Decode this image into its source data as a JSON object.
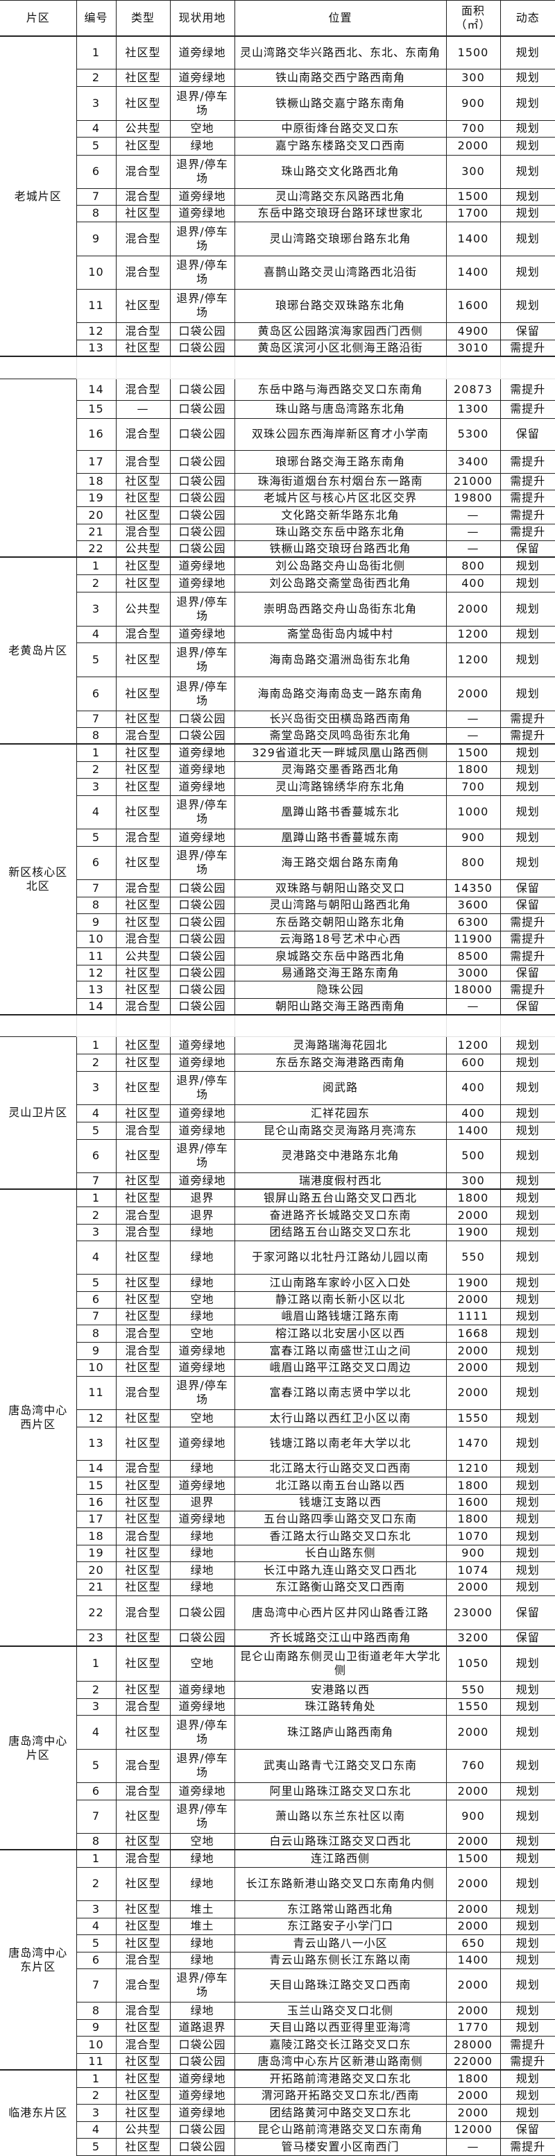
{
  "header": {
    "district": "片区",
    "no": "编号",
    "type": "类型",
    "land": "现状用地",
    "location": "位置",
    "area": "面积\n（㎡）",
    "status": "动态"
  },
  "groups": [
    {
      "district": "老城片区",
      "rows": [
        [
          "1",
          "社区型",
          "道旁绿地",
          "灵山湾路交华兴路西北、东北、东南角",
          "1500",
          "规划"
        ],
        [
          "2",
          "社区型",
          "道旁绿地",
          "铁山南路交西宁路西南角",
          "300",
          "规划"
        ],
        [
          "3",
          "社区型",
          "退界/停车场",
          "铁橛山路交嘉宁路东南角",
          "900",
          "规划"
        ],
        [
          "4",
          "公共型",
          "空地",
          "中原街烽台路交叉口东",
          "700",
          "规划"
        ],
        [
          "5",
          "社区型",
          "绿地",
          "嘉宁路东楼路交叉口西南",
          "2000",
          "规划"
        ],
        [
          "6",
          "混合型",
          "退界/停车场",
          "珠山路交文化路西北角",
          "300",
          "规划"
        ],
        [
          "7",
          "混合型",
          "道旁绿地",
          "灵山湾路交东风路西北角",
          "1500",
          "规划"
        ],
        [
          "8",
          "社区型",
          "道旁绿地",
          "东岳中路交琅玡台路环球世家北",
          "1700",
          "规划"
        ],
        [
          "9",
          "混合型",
          "退界/停车场",
          "灵山湾路交琅琊台路东北角",
          "1400",
          "规划"
        ],
        [
          "10",
          "混合型",
          "退界/停车场",
          "喜鹊山路交灵山湾路西北沿街",
          "1400",
          "规划"
        ],
        [
          "11",
          "社区型",
          "退界/停车场",
          "琅琊台路交双珠路东北角",
          "1600",
          "规划"
        ],
        [
          "12",
          "混合型",
          "口袋公园",
          "黄岛区公园路滨海家园西门西侧",
          "4900",
          "保留"
        ],
        [
          "13",
          "社区型",
          "口袋公园",
          "黄岛区滨河小区北侧海王路沿街",
          "3010",
          "需提升"
        ]
      ]
    },
    {
      "district": "",
      "rows": [
        [
          "14",
          "混合型",
          "口袋公园",
          "东岳中路与海西路交叉口东南角",
          "20873",
          "需提升"
        ],
        [
          "15",
          "—",
          "口袋公园",
          "珠山路与唐岛湾路东北角",
          "1300",
          "需提升"
        ],
        [
          "16",
          "混合型",
          "口袋公园",
          "双珠公园东西海岸新区育才小学南",
          "5300",
          "保留"
        ],
        [
          "17",
          "混合型",
          "口袋公园",
          "琅琊台路交海王路东南角",
          "3400",
          "需提升"
        ],
        [
          "18",
          "社区型",
          "口袋公园",
          "珠海街道烟台东村烟台东一路南",
          "21000",
          "需提升"
        ],
        [
          "19",
          "社区型",
          "口袋公园",
          "老城片区与核心片区北区交界",
          "19800",
          "需提升"
        ],
        [
          "20",
          "社区型",
          "口袋公园",
          "文化路交新华路东北角",
          "—",
          "需提升"
        ],
        [
          "21",
          "混合型",
          "口袋公园",
          "珠山路交东岳中路东北角",
          "—",
          "需提升"
        ],
        [
          "22",
          "公共型",
          "口袋公园",
          "铁橛山路交琅玡台路西北角",
          "—",
          "保留"
        ]
      ]
    },
    {
      "district": "老黄岛片区",
      "rows": [
        [
          "1",
          "社区型",
          "道旁绿地",
          "刘公岛路交舟山岛街北侧",
          "800",
          "规划"
        ],
        [
          "2",
          "社区型",
          "道旁绿地",
          "刘公岛路交斋堂岛街西北角",
          "400",
          "规划"
        ],
        [
          "3",
          "公共型",
          "退界/停车场",
          "崇明岛西路交舟山岛街东北角",
          "2000",
          "规划"
        ],
        [
          "4",
          "混合型",
          "道旁绿地",
          "斋堂岛街岛内城中村",
          "1200",
          "规划"
        ],
        [
          "5",
          "社区型",
          "退界/停车场",
          "海南岛路交湄洲岛街东北角",
          "1200",
          "规划"
        ],
        [
          "6",
          "社区型",
          "退界/停车场",
          "海南岛路交海南岛支一路东南角",
          "2000",
          "规划"
        ],
        [
          "7",
          "社区型",
          "口袋公园",
          "长兴岛街交田横岛路西南角",
          "—",
          "需提升"
        ],
        [
          "8",
          "混合型",
          "口袋公园",
          "斋堂岛路交凤鸣岛街东北角",
          "—",
          "需提升"
        ]
      ]
    },
    {
      "district": "新区核心区\n北区",
      "rows": [
        [
          "1",
          "社区型",
          "道旁绿地",
          "329省道北天一畔城凤凰山路西侧",
          "1500",
          "规划"
        ],
        [
          "2",
          "社区型",
          "道旁绿地",
          "灵海路交墨香路西北角",
          "1800",
          "规划"
        ],
        [
          "3",
          "社区型",
          "道旁绿地",
          "灵山湾路锦绣华府东北角",
          "700",
          "规划"
        ],
        [
          "4",
          "社区型",
          "退界/停车场",
          "凰蹲山路书香蔓城东北",
          "1000",
          "规划"
        ],
        [
          "5",
          "混合型",
          "道旁绿地",
          "凰蹲山路书香蔓城东南",
          "900",
          "规划"
        ],
        [
          "6",
          "社区型",
          "退界/停车场",
          "海王路交烟台路东南角",
          "800",
          "规划"
        ],
        [
          "7",
          "混合型",
          "口袋公园",
          "双珠路与朝阳山路交叉口",
          "14350",
          "保留"
        ],
        [
          "8",
          "社区型",
          "口袋公园",
          "灵山湾路与朝阳山路西北角",
          "3600",
          "保留"
        ],
        [
          "9",
          "社区型",
          "口袋公园",
          "东岳路交朝阳山路东北角",
          "6300",
          "需提升"
        ],
        [
          "10",
          "混合型",
          "口袋公园",
          "云海路18号艺术中心西",
          "11900",
          "需提升"
        ],
        [
          "11",
          "公共型",
          "口袋公园",
          "泉城路交东岳中路西北角",
          "8500",
          "需提升"
        ],
        [
          "12",
          "社区型",
          "口袋公园",
          "易通路交海王路东南角",
          "3000",
          "保留"
        ],
        [
          "13",
          "社区型",
          "口袋公园",
          "隐珠公园",
          "18000",
          "需提升"
        ],
        [
          "14",
          "混合型",
          "口袋公园",
          "朝阳山路交海王路西南角",
          "—",
          "保留"
        ]
      ]
    },
    {
      "district": "灵山卫片区",
      "rows": [
        [
          "1",
          "社区型",
          "道旁绿地",
          "灵海路瑞海花园北",
          "1200",
          "规划"
        ],
        [
          "2",
          "社区型",
          "道旁绿地",
          "东岳东路交海港路西南角",
          "600",
          "规划"
        ],
        [
          "3",
          "社区型",
          "退界/停车场",
          "阅武路",
          "400",
          "规划"
        ],
        [
          "4",
          "社区型",
          "道旁绿地",
          "汇祥花园东",
          "400",
          "规划"
        ],
        [
          "5",
          "混合型",
          "道旁绿地",
          "昆仑山南路交灵海路月亮湾东",
          "1400",
          "规划"
        ],
        [
          "6",
          "社区型",
          "退界/停车场",
          "灵港路交中港路东北角",
          "500",
          "规划"
        ],
        [
          "7",
          "社区型",
          "道旁绿地",
          "瑞港度假村西北",
          "300",
          "规划"
        ]
      ]
    },
    {
      "district": "唐岛湾中心\n西片区",
      "rows": [
        [
          "1",
          "社区型",
          "退界",
          "银屏山路五台山路交叉口西北",
          "1800",
          "规划"
        ],
        [
          "2",
          "混合型",
          "退界",
          "奋进路齐长城路交叉口东南",
          "2000",
          "规划"
        ],
        [
          "3",
          "混合型",
          "绿地",
          "团结路五台山路交叉口东北",
          "1900",
          "规划"
        ],
        [
          "4",
          "社区型",
          "绿地",
          "于家河路以北牡丹江路幼儿园以南",
          "550",
          "规划"
        ],
        [
          "5",
          "社区型",
          "绿地",
          "江山南路车家岭小区入口处",
          "1900",
          "规划"
        ],
        [
          "6",
          "社区型",
          "空地",
          "静江路以南长新小区以北",
          "2000",
          "规划"
        ],
        [
          "7",
          "社区型",
          "绿地",
          "峨眉山路钱塘江路东南",
          "1111",
          "规划"
        ],
        [
          "8",
          "混合型",
          "空地",
          "榕江路以北安居小区以西",
          "1668",
          "规划"
        ],
        [
          "9",
          "混合型",
          "道旁绿地",
          "富春江路以南盛世江山之间",
          "2000",
          "规划"
        ],
        [
          "10",
          "社区型",
          "道旁绿地",
          "峨眉山路平江路交叉口周边",
          "2000",
          "规划"
        ],
        [
          "11",
          "混合型",
          "退界/停车场",
          "富春江路以南志贤中学以北",
          "2000",
          "规划"
        ],
        [
          "12",
          "社区型",
          "空地",
          "太行山路以西红卫小区以南",
          "1550",
          "规划"
        ],
        [
          "13",
          "社区型",
          "道旁绿地",
          "钱塘江路以南老年大学以北",
          "1470",
          "规划"
        ],
        [
          "14",
          "混合型",
          "绿地",
          "北江路太行山路交叉口西南",
          "1210",
          "规划"
        ],
        [
          "15",
          "社区型",
          "道旁绿地",
          "北江路以南五台山路以西",
          "1800",
          "规划"
        ],
        [
          "16",
          "社区型",
          "退界",
          "钱塘江支路以西",
          "1600",
          "规划"
        ],
        [
          "17",
          "社区型",
          "道旁绿地",
          "五台山路四季山路交叉口东南",
          "1800",
          "规划"
        ],
        [
          "18",
          "混合型",
          "绿地",
          "香江路太行山路交叉口东北",
          "1070",
          "规划"
        ],
        [
          "19",
          "社区型",
          "绿地",
          "长白山路东侧",
          "900",
          "规划"
        ],
        [
          "20",
          "社区型",
          "绿地",
          "长江中路九连山路交叉口西北",
          "1074",
          "规划"
        ],
        [
          "21",
          "社区型",
          "绿地",
          "东江路衡山路交叉口西南",
          "2000",
          "规划"
        ],
        [
          "22",
          "混合型",
          "口袋公园",
          "唐岛湾中心西片区井冈山路香江路",
          "23000",
          "保留"
        ],
        [
          "23",
          "社区型",
          "口袋公园",
          "齐长城路交江山中路西南角",
          "3200",
          "保留"
        ]
      ]
    },
    {
      "district": "唐岛湾中心\n片区",
      "rows": [
        [
          "1",
          "社区型",
          "空地",
          "昆仑山南路东侧灵山卫街道老年大学北侧",
          "1050",
          "规划"
        ],
        [
          "2",
          "社区型",
          "道旁绿地",
          "安港路以西",
          "550",
          "规划"
        ],
        [
          "3",
          "混合型",
          "道旁绿地",
          "珠江路转角处",
          "1550",
          "规划"
        ],
        [
          "4",
          "社区型",
          "退界/停车场",
          "珠江路庐山路西南角",
          "2000",
          "规划"
        ],
        [
          "5",
          "混合型",
          "退界/停车场",
          "武夷山路青弋江路交叉口东南",
          "760",
          "规划"
        ],
        [
          "6",
          "混合型",
          "道旁绿地",
          "阿里山路珠江路交叉口东北",
          "2000",
          "规划"
        ],
        [
          "7",
          "社区型",
          "退界/停车场",
          "萧山路以东兰东社区以南",
          "900",
          "规划"
        ],
        [
          "8",
          "社区型",
          "空地",
          "白云山路珠江路交叉口西北",
          "2000",
          "规划"
        ]
      ]
    },
    {
      "district": "唐岛湾中心\n东片区",
      "rows": [
        [
          "1",
          "混合型",
          "绿地",
          "连江路西侧",
          "1500",
          "规划"
        ],
        [
          "2",
          "社区型",
          "绿地",
          "长江东路新港山路交叉口东南角内侧",
          "2000",
          "规划"
        ],
        [
          "3",
          "社区型",
          "堆土",
          "东江路常山路西北角",
          "2000",
          "规划"
        ],
        [
          "4",
          "社区型",
          "堆土",
          "东江路安子小学门口",
          "2000",
          "规划"
        ],
        [
          "5",
          "社区型",
          "绿地",
          "青云山路八一小区",
          "650",
          "规划"
        ],
        [
          "6",
          "混合型",
          "绿地",
          "青云山路东侧长江东路以南",
          "1400",
          "规划"
        ],
        [
          "7",
          "混合型",
          "退界/停车场",
          "天目山路珠江路交叉口西南",
          "2000",
          "规划"
        ],
        [
          "8",
          "混合型",
          "绿地",
          "玉兰山路交叉口北侧",
          "2000",
          "规划"
        ],
        [
          "9",
          "社区型",
          "道路退界",
          "天目山路以西亚得里亚海湾",
          "1770",
          "规划"
        ],
        [
          "10",
          "混合型",
          "口袋公园",
          "嘉陵江路交长江路交叉口东",
          "28000",
          "需提升"
        ],
        [
          "11",
          "社区型",
          "口袋公园",
          "唐岛湾中心东片区新港山路南侧",
          "22000",
          "需提升"
        ]
      ]
    },
    {
      "district": "临港东片区",
      "rows": [
        [
          "1",
          "社区型",
          "道旁绿地",
          "开拓路前湾港路交叉口东北",
          "1800",
          "规划"
        ],
        [
          "2",
          "社区型",
          "道旁绿地",
          "渭河路开拓路交叉口东北/西南",
          "2000",
          "规划"
        ],
        [
          "3",
          "社区型",
          "道旁绿地",
          "团结路黄河中路交叉口东北",
          "2000",
          "规划"
        ],
        [
          "4",
          "公共型",
          "口袋公园",
          "昆仑山路前湾港路交叉口东南角",
          "12000",
          "保留"
        ],
        [
          "5",
          "社区型",
          "口袋公园",
          "管马楼安置小区南西门",
          "—",
          "需提升"
        ]
      ]
    }
  ]
}
